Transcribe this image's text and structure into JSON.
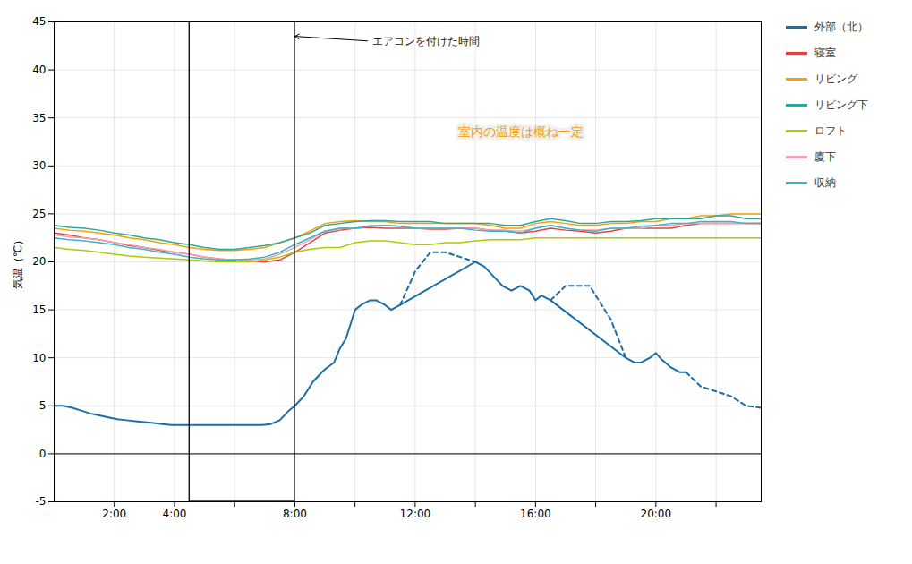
{
  "chart_data": {
    "type": "line",
    "ylabel": "気温（℃）",
    "xlim": [
      0,
      23.5
    ],
    "ylim": [
      -5,
      45
    ],
    "xticks": [
      {
        "value": 2,
        "label": "2:00"
      },
      {
        "value": 4,
        "label": "4:00"
      },
      {
        "value": 6,
        "label": null
      },
      {
        "value": 8,
        "label": "8:00"
      },
      {
        "value": 10,
        "label": null
      },
      {
        "value": 12,
        "label": "12:00"
      },
      {
        "value": 14,
        "label": null
      },
      {
        "value": 16,
        "label": "16:00"
      },
      {
        "value": 18,
        "label": null
      },
      {
        "value": 20,
        "label": "20:00"
      },
      {
        "value": 22,
        "label": null
      }
    ],
    "yticks": [
      -5,
      0,
      5,
      10,
      15,
      20,
      25,
      30,
      35,
      40,
      45
    ],
    "grid": true,
    "legend": "right",
    "series": [
      {
        "name": "外部（北）",
        "color": "#1a6fa8",
        "line_style": "solid",
        "x": [
          0,
          0.3,
          0.6,
          0.9,
          1.2,
          1.5,
          1.8,
          2.1,
          2.4,
          2.7,
          3.0,
          3.3,
          3.6,
          3.9,
          4.2,
          4.5,
          4.8,
          5.1,
          5.4,
          5.7,
          6.0,
          6.3,
          6.6,
          6.9,
          7.2,
          7.5,
          7.8,
          8.0,
          8.3,
          8.6,
          8.9,
          9.0,
          9.3,
          9.5,
          9.7,
          9.9,
          10.0,
          10.2,
          10.5,
          10.7,
          11.0,
          11.2,
          11.5,
          14.0,
          14.3,
          14.6,
          14.9,
          15.2,
          15.5,
          15.8,
          16.0,
          16.2,
          16.5,
          19.0,
          19.3,
          19.5,
          19.8,
          20.0,
          20.2,
          20.5,
          20.8,
          21.0
        ],
        "values": [
          5.0,
          5.0,
          4.8,
          4.5,
          4.2,
          4.0,
          3.8,
          3.6,
          3.5,
          3.4,
          3.3,
          3.2,
          3.1,
          3.0,
          3.0,
          3.0,
          3.0,
          3.0,
          3.0,
          3.0,
          3.0,
          3.0,
          3.0,
          3.0,
          3.1,
          3.5,
          4.5,
          5.0,
          6.0,
          7.5,
          8.5,
          8.8,
          9.5,
          11.0,
          12.0,
          14.0,
          15.0,
          15.5,
          16.0,
          16.0,
          15.5,
          15.0,
          15.5,
          20.0,
          19.5,
          18.5,
          17.5,
          17.0,
          17.5,
          17.0,
          16.0,
          16.5,
          16.0,
          10.0,
          9.5,
          9.5,
          10.0,
          10.5,
          9.8,
          9.0,
          8.5,
          8.5
        ]
      },
      {
        "name": "外部（北）",
        "color": "#1a6fa8",
        "line_style": "dashed",
        "x": [
          11.5,
          12.0,
          12.5,
          13.0,
          13.5,
          14.0
        ],
        "values": [
          15.5,
          19.0,
          21.0,
          21.0,
          20.5,
          20.0
        ]
      },
      {
        "name": "外部（北）",
        "color": "#1a6fa8",
        "line_style": "dashed",
        "x": [
          16.5,
          17.0,
          17.5,
          17.8,
          18.0,
          18.5,
          19.0
        ],
        "values": [
          16.0,
          17.5,
          17.5,
          17.5,
          16.5,
          14.0,
          10.0
        ]
      },
      {
        "name": "外部（北）",
        "color": "#1a6fa8",
        "line_style": "dashed",
        "x": [
          21.0,
          21.5,
          22.0,
          22.5,
          23.0,
          23.5
        ],
        "values": [
          8.5,
          7.0,
          6.5,
          6.0,
          5.0,
          4.8
        ]
      },
      {
        "name": "寝室",
        "color": "#e84040",
        "line_style": "solid",
        "x": [
          0,
          0.5,
          1,
          1.5,
          2,
          2.5,
          3,
          3.5,
          4,
          4.5,
          5,
          5.5,
          6,
          6.5,
          7,
          7.5,
          8,
          8.5,
          9,
          9.5,
          10,
          10.5,
          11,
          11.5,
          12,
          12.5,
          13,
          13.5,
          14,
          14.5,
          15,
          15.5,
          16,
          16.5,
          17,
          17.5,
          18,
          18.5,
          19,
          19.5,
          20,
          20.5,
          21,
          21.5,
          22,
          22.5,
          23,
          23.5
        ],
        "values": [
          23.0,
          22.8,
          22.5,
          22.3,
          22.0,
          21.7,
          21.5,
          21.2,
          21.0,
          20.8,
          20.5,
          20.3,
          20.2,
          20.1,
          20.0,
          20.2,
          21.0,
          22.0,
          23.0,
          23.3,
          23.5,
          23.6,
          23.5,
          23.5,
          23.5,
          23.4,
          23.4,
          23.5,
          23.5,
          23.3,
          23.2,
          23.0,
          23.2,
          23.5,
          23.3,
          23.2,
          23.0,
          23.2,
          23.5,
          23.5,
          23.5,
          23.5,
          23.8,
          24.0,
          24.0,
          24.0,
          24.0,
          24.0
        ]
      },
      {
        "name": "リビング",
        "color": "#f5a000",
        "line_style": "solid",
        "x": [
          0,
          0.5,
          1,
          1.5,
          2,
          2.5,
          3,
          3.5,
          4,
          4.5,
          5,
          5.5,
          6,
          6.5,
          7,
          7.5,
          8,
          8.5,
          9,
          9.5,
          10,
          10.5,
          11,
          11.5,
          12,
          12.5,
          13,
          13.5,
          14,
          14.5,
          15,
          15.5,
          16,
          16.5,
          17,
          17.5,
          18,
          18.5,
          19,
          19.5,
          20,
          20.5,
          21,
          21.5,
          22,
          22.5,
          23,
          23.5
        ],
        "values": [
          23.5,
          23.3,
          23.2,
          23.0,
          22.8,
          22.5,
          22.3,
          22.0,
          21.8,
          21.5,
          21.3,
          21.2,
          21.2,
          21.3,
          21.5,
          22.0,
          22.5,
          23.2,
          24.0,
          24.2,
          24.3,
          24.2,
          24.2,
          24.0,
          24.0,
          24.0,
          24.0,
          24.0,
          24.0,
          23.8,
          23.5,
          23.5,
          24.0,
          24.2,
          24.0,
          23.8,
          23.8,
          24.0,
          24.0,
          24.2,
          24.2,
          24.5,
          24.5,
          24.8,
          24.8,
          25.0,
          25.0,
          25.0
        ]
      },
      {
        "name": "リビング下",
        "color": "#2ca89a",
        "line_style": "solid",
        "x": [
          0,
          0.5,
          1,
          1.5,
          2,
          2.5,
          3,
          3.5,
          4,
          4.5,
          5,
          5.5,
          6,
          6.5,
          7,
          7.5,
          8,
          8.5,
          9,
          9.5,
          10,
          10.5,
          11,
          11.5,
          12,
          12.5,
          13,
          13.5,
          14,
          14.5,
          15,
          15.5,
          16,
          16.5,
          17,
          17.5,
          18,
          18.5,
          19,
          19.5,
          20,
          20.5,
          21,
          21.5,
          22,
          22.5,
          23,
          23.5
        ],
        "values": [
          23.8,
          23.6,
          23.5,
          23.3,
          23.0,
          22.8,
          22.5,
          22.3,
          22.0,
          21.8,
          21.5,
          21.3,
          21.3,
          21.5,
          21.7,
          22.0,
          22.5,
          23.0,
          23.8,
          24.0,
          24.2,
          24.3,
          24.3,
          24.2,
          24.2,
          24.2,
          24.0,
          24.0,
          24.0,
          24.0,
          23.8,
          23.8,
          24.2,
          24.5,
          24.3,
          24.0,
          24.0,
          24.2,
          24.2,
          24.3,
          24.5,
          24.5,
          24.5,
          24.5,
          24.8,
          24.8,
          24.5,
          24.5
        ]
      },
      {
        "name": "ロフト",
        "color": "#aacc00",
        "line_style": "solid",
        "x": [
          0,
          0.5,
          1,
          1.5,
          2,
          2.5,
          3,
          3.5,
          4,
          4.5,
          5,
          5.5,
          6,
          6.5,
          7,
          7.5,
          8,
          8.5,
          9,
          9.5,
          10,
          10.5,
          11,
          11.5,
          12,
          12.5,
          13,
          13.5,
          14,
          14.5,
          15,
          15.5,
          16,
          16.5,
          17,
          17.5,
          18,
          18.5,
          19,
          19.5,
          20,
          20.5,
          21,
          21.5,
          22,
          22.5,
          23,
          23.5
        ],
        "values": [
          21.5,
          21.3,
          21.2,
          21.0,
          20.8,
          20.6,
          20.5,
          20.4,
          20.3,
          20.2,
          20.1,
          20.0,
          20.0,
          20.0,
          20.2,
          20.5,
          21.0,
          21.3,
          21.5,
          21.5,
          22.0,
          22.2,
          22.2,
          22.0,
          21.8,
          21.8,
          22.0,
          22.0,
          22.2,
          22.3,
          22.3,
          22.3,
          22.5,
          22.5,
          22.5,
          22.5,
          22.5,
          22.5,
          22.5,
          22.5,
          22.5,
          22.5,
          22.5,
          22.5,
          22.5,
          22.5,
          22.5,
          22.5
        ]
      },
      {
        "name": "廈下",
        "color": "#f4a0b0",
        "line_style": "solid",
        "x": [
          0,
          0.5,
          1,
          1.5,
          2,
          2.5,
          3,
          3.5,
          4,
          4.5,
          5,
          5.5,
          6,
          6.5,
          7,
          7.5,
          8,
          8.5,
          9,
          9.5,
          10,
          10.5,
          11,
          11.5,
          12,
          12.5,
          13,
          13.5,
          14,
          14.5,
          15,
          15.5,
          16,
          16.5,
          17,
          17.5,
          18,
          18.5,
          19,
          19.5,
          20,
          20.5,
          21,
          21.5,
          22,
          22.5,
          23,
          23.5
        ],
        "values": [
          22.8,
          22.6,
          22.5,
          22.3,
          22.0,
          21.8,
          21.5,
          21.3,
          21.0,
          20.8,
          20.5,
          20.3,
          20.2,
          20.2,
          20.3,
          20.8,
          21.5,
          22.3,
          23.2,
          23.5,
          23.5,
          23.8,
          23.8,
          23.7,
          23.5,
          23.5,
          23.5,
          23.5,
          23.5,
          23.3,
          23.3,
          23.2,
          23.5,
          23.8,
          23.5,
          23.3,
          23.3,
          23.5,
          23.5,
          23.5,
          23.8,
          23.8,
          24.0,
          24.0,
          24.0,
          24.0,
          24.0,
          24.0
        ]
      },
      {
        "name": "収納",
        "color": "#3ab5c6",
        "line_style": "solid",
        "x": [
          0,
          0.5,
          1,
          1.5,
          2,
          2.5,
          3,
          3.5,
          4,
          4.5,
          5,
          5.5,
          6,
          6.5,
          7,
          7.5,
          8,
          8.5,
          9,
          9.5,
          10,
          10.5,
          11,
          11.5,
          12,
          12.5,
          13,
          13.5,
          14,
          14.5,
          15,
          15.5,
          16,
          16.5,
          17,
          17.5,
          18,
          18.5,
          19,
          19.5,
          20,
          20.5,
          21,
          21.5,
          22,
          22.5,
          23,
          23.5
        ],
        "values": [
          22.5,
          22.3,
          22.2,
          22.0,
          21.8,
          21.5,
          21.3,
          21.0,
          20.8,
          20.5,
          20.3,
          20.2,
          20.2,
          20.3,
          20.5,
          21.0,
          21.8,
          22.5,
          23.2,
          23.5,
          23.5,
          23.7,
          23.8,
          23.7,
          23.5,
          23.5,
          23.5,
          23.5,
          23.3,
          23.2,
          23.2,
          23.0,
          23.5,
          23.8,
          23.5,
          23.3,
          23.2,
          23.5,
          23.5,
          23.7,
          23.8,
          24.0,
          24.0,
          24.2,
          24.2,
          24.2,
          24.0,
          24.0
        ]
      }
    ],
    "highlight": {
      "x0": 4.5,
      "x1": 8.0,
      "color": "#000000"
    },
    "zero_line": {
      "y": 0,
      "color": "#333333"
    },
    "annotations": [
      {
        "text": "エアコンを付けた時間",
        "x": 10.5,
        "y": 43.0,
        "arrow_x": 8.0,
        "arrow_y": 43.5
      },
      {
        "text": "室内の温度は概ね一定",
        "x": 15.5,
        "y": 33.5,
        "color": "#f5a000",
        "box": true
      }
    ]
  }
}
